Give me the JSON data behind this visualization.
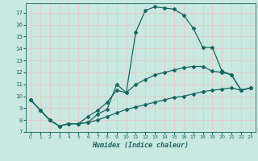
{
  "xlabel": "Humidex (Indice chaleur)",
  "xlim": [
    -0.5,
    23.5
  ],
  "ylim": [
    7,
    17.8
  ],
  "yticks": [
    7,
    8,
    9,
    10,
    11,
    12,
    13,
    14,
    15,
    16,
    17
  ],
  "xticks": [
    0,
    1,
    2,
    3,
    4,
    5,
    6,
    7,
    8,
    9,
    10,
    11,
    12,
    13,
    14,
    15,
    16,
    17,
    18,
    19,
    20,
    21,
    22,
    23
  ],
  "background_color": "#c8e8e0",
  "grid_color": "#e8c8c8",
  "line_color": "#1a6660",
  "line1_x": [
    0,
    1,
    2,
    3,
    4,
    5,
    6,
    7,
    8,
    9,
    10,
    11,
    12,
    13,
    14,
    15,
    16,
    17,
    18,
    19,
    20,
    21,
    22,
    23
  ],
  "line1_y": [
    9.7,
    8.85,
    8.0,
    7.5,
    7.7,
    7.7,
    7.8,
    8.5,
    8.9,
    11.0,
    10.3,
    15.4,
    17.2,
    17.5,
    17.4,
    17.3,
    16.8,
    15.7,
    14.1,
    14.1,
    12.1,
    11.8,
    10.5,
    10.7
  ],
  "line2_x": [
    0,
    1,
    2,
    3,
    4,
    5,
    6,
    7,
    8,
    9,
    10,
    11,
    12,
    13,
    14,
    15,
    16,
    17,
    18,
    19,
    20,
    21,
    22,
    23
  ],
  "line2_y": [
    9.7,
    8.85,
    8.0,
    7.5,
    7.7,
    7.7,
    8.3,
    8.8,
    9.5,
    10.5,
    10.3,
    11.0,
    11.4,
    11.8,
    12.0,
    12.2,
    12.4,
    12.5,
    12.5,
    12.1,
    12.0,
    11.8,
    10.5,
    10.7
  ],
  "line3_x": [
    0,
    1,
    2,
    3,
    4,
    5,
    6,
    7,
    8,
    9,
    10,
    11,
    12,
    13,
    14,
    15,
    16,
    17,
    18,
    19,
    20,
    21,
    22,
    23
  ],
  "line3_y": [
    9.7,
    8.85,
    8.0,
    7.5,
    7.7,
    7.7,
    7.8,
    8.0,
    8.3,
    8.6,
    8.9,
    9.1,
    9.3,
    9.5,
    9.7,
    9.9,
    10.0,
    10.2,
    10.4,
    10.5,
    10.6,
    10.7,
    10.5,
    10.7
  ]
}
